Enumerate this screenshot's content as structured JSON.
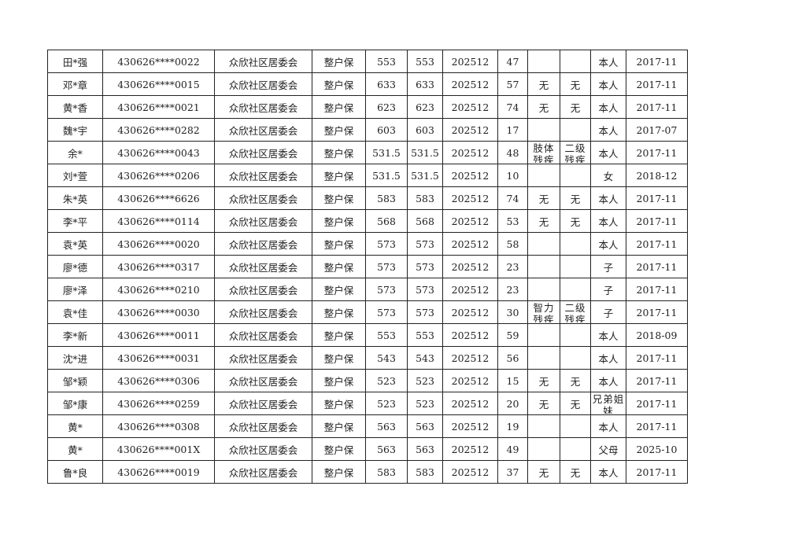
{
  "rows": [
    [
      "田*强",
      "430626****0022",
      "众欣社区居委会",
      "整户保",
      "553",
      "553",
      "202512",
      "47",
      "",
      "",
      "本人",
      "2017-11"
    ],
    [
      "邓*章",
      "430626****0015",
      "众欣社区居委会",
      "整户保",
      "633",
      "633",
      "202512",
      "57",
      "无",
      "无",
      "本人",
      "2017-11"
    ],
    [
      "黄*香",
      "430626****0021",
      "众欣社区居委会",
      "整户保",
      "623",
      "623",
      "202512",
      "74",
      "无",
      "无",
      "本人",
      "2017-11"
    ],
    [
      "魏*宇",
      "430626****0282",
      "众欣社区居委会",
      "整户保",
      "603",
      "603",
      "202512",
      "17",
      "",
      "",
      "本人",
      "2017-07"
    ],
    [
      "余*",
      "430626****0043",
      "众欣社区居委会",
      "整户保",
      "531.5",
      "531.5",
      "202512",
      "48",
      "肢体残疾",
      "二级残疾",
      "本人",
      "2017-11"
    ],
    [
      "刘*萱",
      "430626****0206",
      "众欣社区居委会",
      "整户保",
      "531.5",
      "531.5",
      "202512",
      "10",
      "",
      "",
      "女",
      "2018-12"
    ],
    [
      "朱*英",
      "430626****6626",
      "众欣社区居委会",
      "整户保",
      "583",
      "583",
      "202512",
      "74",
      "无",
      "无",
      "本人",
      "2017-11"
    ],
    [
      "李*平",
      "430626****0114",
      "众欣社区居委会",
      "整户保",
      "568",
      "568",
      "202512",
      "53",
      "无",
      "无",
      "本人",
      "2017-11"
    ],
    [
      "袁*英",
      "430626****0020",
      "众欣社区居委会",
      "整户保",
      "573",
      "573",
      "202512",
      "58",
      "",
      "",
      "本人",
      "2017-11"
    ],
    [
      "廖*德",
      "430626****0317",
      "众欣社区居委会",
      "整户保",
      "573",
      "573",
      "202512",
      "23",
      "",
      "",
      "子",
      "2017-11"
    ],
    [
      "廖*泽",
      "430626****0210",
      "众欣社区居委会",
      "整户保",
      "573",
      "573",
      "202512",
      "23",
      "",
      "",
      "子",
      "2017-11"
    ],
    [
      "袁*佳",
      "430626****0030",
      "众欣社区居委会",
      "整户保",
      "573",
      "573",
      "202512",
      "30",
      "智力残疾",
      "二级残疾",
      "子",
      "2017-11"
    ],
    [
      "李*新",
      "430626****0011",
      "众欣社区居委会",
      "整户保",
      "553",
      "553",
      "202512",
      "59",
      "",
      "",
      "本人",
      "2018-09"
    ],
    [
      "沈*进",
      "430626****0031",
      "众欣社区居委会",
      "整户保",
      "543",
      "543",
      "202512",
      "56",
      "",
      "",
      "本人",
      "2017-11"
    ],
    [
      "邹*颖",
      "430626****0306",
      "众欣社区居委会",
      "整户保",
      "523",
      "523",
      "202512",
      "15",
      "无",
      "无",
      "本人",
      "2017-11"
    ],
    [
      "邹*康",
      "430626****0259",
      "众欣社区居委会",
      "整户保",
      "523",
      "523",
      "202512",
      "20",
      "无",
      "无",
      "兄弟姐妹",
      "2017-11"
    ],
    [
      "黄*",
      "430626****0308",
      "众欣社区居委会",
      "整户保",
      "563",
      "563",
      "202512",
      "19",
      "",
      "",
      "本人",
      "2017-11"
    ],
    [
      "黄*",
      "430626****001X",
      "众欣社区居委会",
      "整户保",
      "563",
      "563",
      "202512",
      "49",
      "",
      "",
      "父母",
      "2025-10"
    ],
    [
      "鲁*良",
      "430626****0019",
      "众欣社区居委会",
      "整户保",
      "583",
      "583",
      "202512",
      "37",
      "无",
      "无",
      "本人",
      "2017-11"
    ]
  ]
}
